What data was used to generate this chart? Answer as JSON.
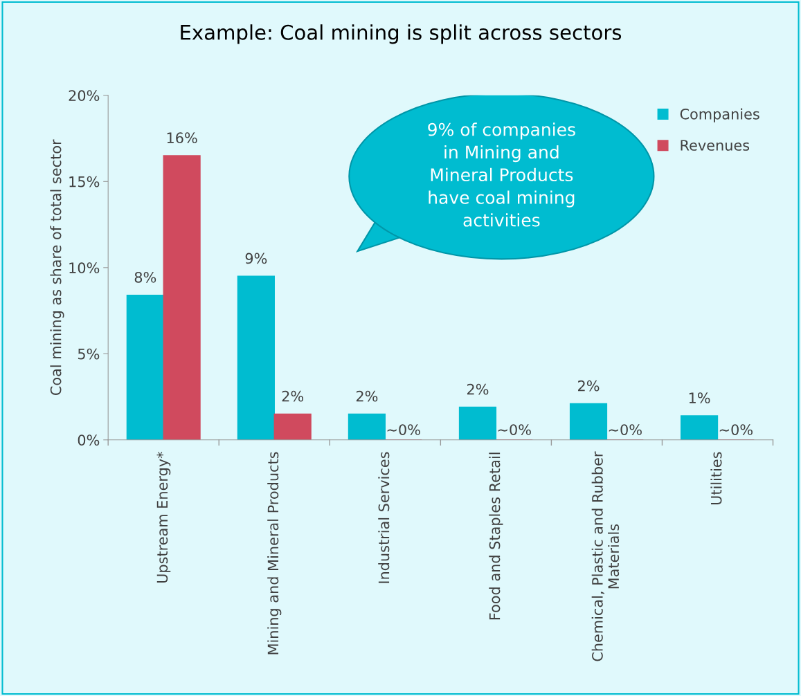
{
  "chart_data": {
    "type": "bar",
    "title": "Example: Coal mining is split across sectors",
    "ylabel": "Coal mining as share of total sector",
    "categories": [
      "Upstream Energy*",
      "Mining and Mineral Products",
      "Industrial Services",
      "Food and Staples Retail",
      "Chemical, Plastic and Rubber\nMaterials",
      "Utilities"
    ],
    "series": [
      {
        "name": "Companies",
        "color": "#00bcd0",
        "values": [
          8.4,
          9.5,
          1.5,
          1.9,
          2.1,
          1.4
        ],
        "value_labels": [
          "8%",
          "9%",
          "2%",
          "2%",
          "2%",
          "1%"
        ]
      },
      {
        "name": "Revenues",
        "color": "#d04a5e",
        "values": [
          16.5,
          1.5,
          0,
          0,
          0,
          0
        ],
        "value_labels": [
          "16%",
          "2%",
          "~0%",
          "~0%",
          "~0%",
          "~0%"
        ]
      }
    ],
    "ylim": [
      0,
      20
    ],
    "yticks": [
      {
        "value": 0,
        "label": "0%"
      },
      {
        "value": 5,
        "label": "5%"
      },
      {
        "value": 10,
        "label": "10%"
      },
      {
        "value": 15,
        "label": "15%"
      },
      {
        "value": 20,
        "label": "20%"
      }
    ],
    "grid": false,
    "legend": "top right",
    "annotations": [
      "9% of companies\nin Mining and\nMineral Products\nhave coal mining\nactivities"
    ]
  }
}
